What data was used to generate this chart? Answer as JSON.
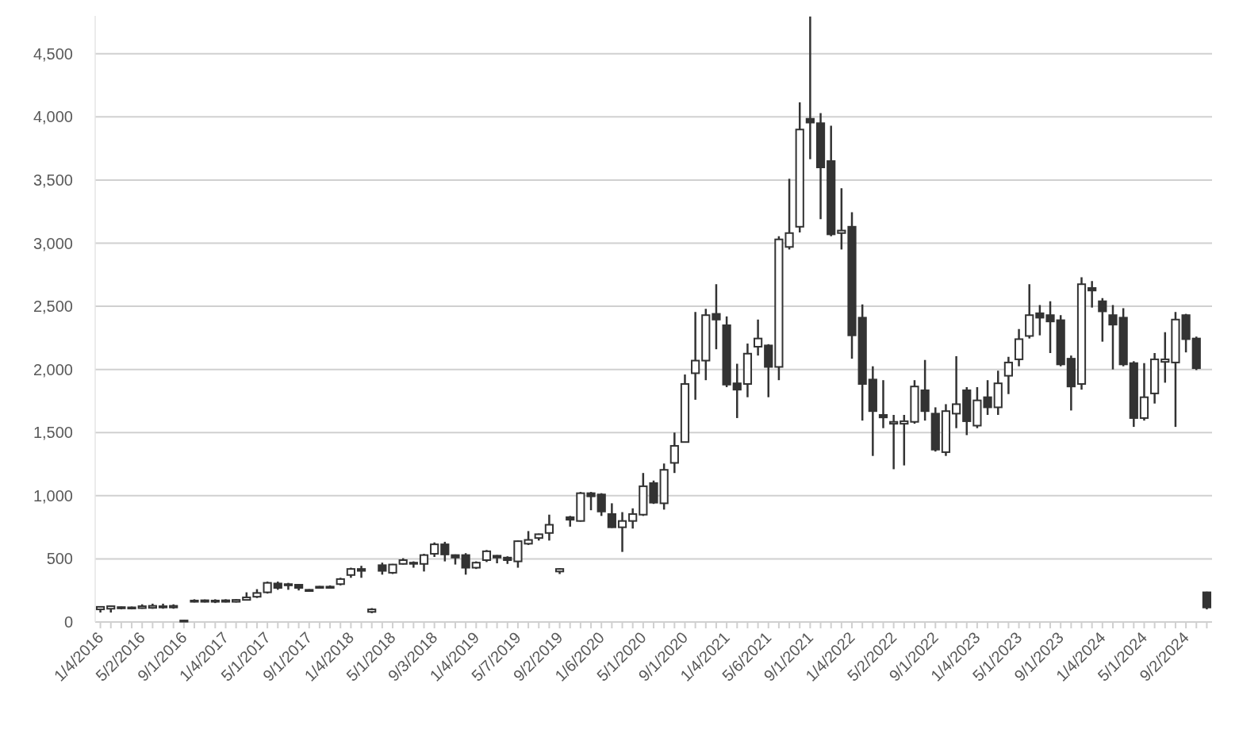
{
  "chart_data": {
    "type": "candlestick",
    "color": "#333333",
    "categories": [
      "1/4/2016",
      null,
      null,
      null,
      "5/2/2016",
      null,
      null,
      null,
      "9/1/2016",
      null,
      null,
      null,
      "1/4/2017",
      null,
      null,
      null,
      "5/1/2017",
      null,
      null,
      null,
      "9/1/2017",
      null,
      null,
      null,
      "1/4/2018",
      null,
      null,
      null,
      "5/1/2018",
      null,
      null,
      null,
      "9/3/2018",
      null,
      null,
      null,
      "1/4/2019",
      null,
      null,
      null,
      "5/7/2019",
      null,
      null,
      null,
      "9/2/2019",
      null,
      null,
      null,
      "1/6/2020",
      null,
      null,
      null,
      "5/1/2020",
      null,
      null,
      null,
      "9/1/2020",
      null,
      null,
      null,
      "1/4/2021",
      null,
      null,
      null,
      "5/6/2021",
      null,
      null,
      null,
      "9/1/2021",
      null,
      null,
      null,
      "1/4/2022",
      null,
      null,
      null,
      "5/2/2022",
      null,
      null,
      null,
      "9/1/2022",
      null,
      null,
      null,
      "1/4/2023",
      null,
      null,
      null,
      "5/1/2023",
      null,
      null,
      null,
      "9/1/2023",
      null,
      null,
      null,
      "1/4/2024",
      null,
      null,
      null,
      "5/1/2024",
      null,
      null,
      null,
      "9/2/2024",
      null,
      null
    ],
    "ohlc": [
      [
        100,
        125,
        75,
        120
      ],
      [
        105,
        128,
        75,
        125
      ],
      [
        108,
        122,
        100,
        118
      ],
      [
        108,
        122,
        100,
        116
      ],
      [
        110,
        140,
        105,
        125
      ],
      [
        112,
        145,
        105,
        128
      ],
      [
        115,
        145,
        105,
        125
      ],
      [
        115,
        140,
        105,
        128
      ],
      [
        5,
        15,
        2,
        12
      ],
      [
        160,
        180,
        155,
        170
      ],
      [
        160,
        178,
        155,
        172
      ],
      [
        160,
        180,
        150,
        170
      ],
      [
        160,
        180,
        155,
        172
      ],
      [
        160,
        180,
        155,
        175
      ],
      [
        175,
        235,
        170,
        195
      ],
      [
        200,
        260,
        190,
        230
      ],
      [
        235,
        320,
        225,
        310
      ],
      [
        305,
        320,
        255,
        270
      ],
      [
        300,
        310,
        255,
        290
      ],
      [
        295,
        300,
        250,
        270
      ],
      [
        245,
        260,
        240,
        255
      ],
      [
        270,
        285,
        265,
        280
      ],
      [
        270,
        290,
        265,
        280
      ],
      [
        300,
        350,
        290,
        340
      ],
      [
        372,
        430,
        350,
        420
      ],
      [
        420,
        445,
        350,
        405
      ],
      [
        80,
        110,
        70,
        100
      ],
      [
        450,
        470,
        375,
        405
      ],
      [
        390,
        460,
        380,
        455
      ],
      [
        460,
        505,
        455,
        490
      ],
      [
        470,
        480,
        430,
        465
      ],
      [
        460,
        540,
        400,
        530
      ],
      [
        540,
        630,
        515,
        615
      ],
      [
        615,
        635,
        480,
        535
      ],
      [
        530,
        535,
        455,
        510
      ],
      [
        530,
        545,
        375,
        430
      ],
      [
        430,
        480,
        420,
        470
      ],
      [
        490,
        570,
        475,
        560
      ],
      [
        525,
        530,
        465,
        510
      ],
      [
        510,
        520,
        460,
        490
      ],
      [
        480,
        645,
        430,
        640
      ],
      [
        620,
        720,
        610,
        650
      ],
      [
        665,
        700,
        645,
        695
      ],
      [
        705,
        850,
        645,
        770
      ],
      [
        400,
        425,
        380,
        420
      ],
      [
        830,
        840,
        755,
        810
      ],
      [
        800,
        1030,
        795,
        1020
      ],
      [
        1020,
        1030,
        885,
        995
      ],
      [
        1010,
        1020,
        840,
        875
      ],
      [
        855,
        940,
        745,
        750
      ],
      [
        750,
        870,
        555,
        800
      ],
      [
        800,
        900,
        740,
        855
      ],
      [
        850,
        1180,
        840,
        1075
      ],
      [
        1100,
        1120,
        935,
        945
      ],
      [
        940,
        1255,
        890,
        1205
      ],
      [
        1260,
        1500,
        1180,
        1395
      ],
      [
        1425,
        1960,
        1420,
        1885
      ],
      [
        1970,
        2455,
        1760,
        2070
      ],
      [
        2070,
        2480,
        1915,
        2430
      ],
      [
        2440,
        2675,
        2160,
        2395
      ],
      [
        2350,
        2420,
        1860,
        1880
      ],
      [
        1890,
        2045,
        1615,
        1840
      ],
      [
        1885,
        2205,
        1780,
        2125
      ],
      [
        2180,
        2395,
        2110,
        2245
      ],
      [
        2190,
        2200,
        1780,
        2020
      ],
      [
        2020,
        3055,
        1915,
        3030
      ],
      [
        2970,
        3510,
        2950,
        3080
      ],
      [
        3130,
        4115,
        3085,
        3900
      ],
      [
        3985,
        4795,
        3665,
        3955
      ],
      [
        3950,
        4030,
        3190,
        3600
      ],
      [
        3650,
        3930,
        3055,
        3070
      ],
      [
        3080,
        3435,
        2950,
        3100
      ],
      [
        3130,
        3245,
        2085,
        2270
      ],
      [
        2410,
        2515,
        1595,
        1885
      ],
      [
        1920,
        2025,
        1315,
        1670
      ],
      [
        1640,
        1915,
        1535,
        1620
      ],
      [
        1570,
        1640,
        1210,
        1585
      ],
      [
        1570,
        1640,
        1240,
        1590
      ],
      [
        1585,
        1915,
        1570,
        1865
      ],
      [
        1835,
        2075,
        1595,
        1670
      ],
      [
        1650,
        1700,
        1350,
        1365
      ],
      [
        1345,
        1725,
        1315,
        1670
      ],
      [
        1650,
        2105,
        1535,
        1725
      ],
      [
        1835,
        1860,
        1480,
        1590
      ],
      [
        1555,
        1860,
        1535,
        1755
      ],
      [
        1780,
        1915,
        1640,
        1700
      ],
      [
        1700,
        1990,
        1640,
        1890
      ],
      [
        1950,
        2100,
        1805,
        2055
      ],
      [
        2080,
        2320,
        2025,
        2240
      ],
      [
        2265,
        2675,
        2245,
        2430
      ],
      [
        2445,
        2510,
        2270,
        2410
      ],
      [
        2430,
        2540,
        2130,
        2380
      ],
      [
        2390,
        2430,
        2025,
        2040
      ],
      [
        2085,
        2110,
        1675,
        1865
      ],
      [
        1885,
        2730,
        1840,
        2675
      ],
      [
        2645,
        2700,
        2490,
        2625
      ],
      [
        2540,
        2565,
        2220,
        2460
      ],
      [
        2430,
        2510,
        2000,
        2355
      ],
      [
        2410,
        2485,
        2025,
        2040
      ],
      [
        2050,
        2065,
        1545,
        1615
      ],
      [
        1615,
        2050,
        1595,
        1780
      ],
      [
        1810,
        2130,
        1730,
        2080
      ],
      [
        2060,
        2295,
        1895,
        2080
      ],
      [
        2055,
        2455,
        1545,
        2395
      ],
      [
        2430,
        2440,
        2135,
        2240
      ],
      [
        2245,
        2260,
        1995,
        2010
      ],
      [
        235,
        240,
        100,
        115
      ]
    ],
    "ylim": [
      0,
      4800
    ],
    "yticks": [
      0,
      {
        "value": 500,
        "label": "500"
      },
      {
        "value": 1000,
        "label": "1,000"
      },
      {
        "value": 1500,
        "label": "1,500"
      },
      {
        "value": 2000,
        "label": "2,000"
      },
      {
        "value": 2500,
        "label": "2,500"
      },
      {
        "value": 3000,
        "label": "3,000"
      },
      {
        "value": 3500,
        "label": "3,500"
      },
      {
        "value": 4000,
        "label": "4,000"
      },
      {
        "value": 4500,
        "label": "4,500"
      }
    ],
    "grid": "y"
  }
}
